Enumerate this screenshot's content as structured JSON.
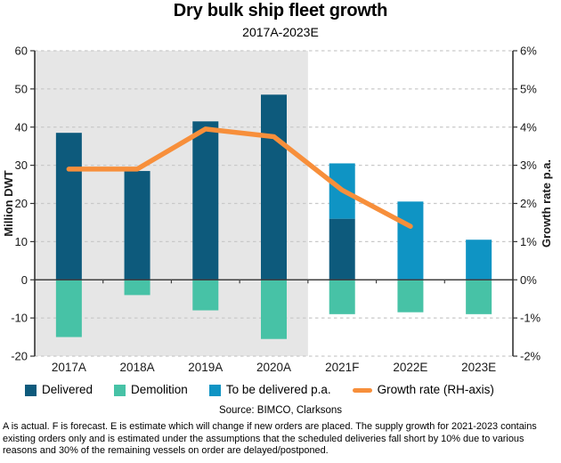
{
  "header": {
    "title": "Dry bulk ship fleet growth",
    "subtitle": "2017A-2023E"
  },
  "source": "Source: BIMCO, Clarksons",
  "footnote": "A is actual. F is forecast. E is estimate which will change if new orders are placed. The supply growth for 2021-2023 contains existing orders only and is estimated under the assumptions that the scheduled deliveries fall short by 10% due to various reasons and 30% of the remaining vessels on order are delayed/postponed.",
  "chart_data": {
    "type": "bar",
    "title": "Dry bulk ship fleet growth",
    "subtitle": "2017A-2023E",
    "categories": [
      "2017A",
      "2018A",
      "2019A",
      "2020A",
      "2021F",
      "2022E",
      "2023E"
    ],
    "series": [
      {
        "name": "Delivered",
        "type": "bar",
        "axis": "left",
        "color": "#0d5a7c",
        "values": [
          38.5,
          28.5,
          41.5,
          48.5,
          16,
          0,
          0
        ]
      },
      {
        "name": "Demolition",
        "type": "bar",
        "axis": "left",
        "color": "#47c2a6",
        "values": [
          -15,
          -4,
          -8,
          -15.5,
          -9,
          -8.5,
          -9
        ]
      },
      {
        "name": "To be delivered p.a.",
        "type": "bar",
        "axis": "left",
        "color": "#0f94c4",
        "values": [
          0,
          0,
          0,
          0,
          14.5,
          20.5,
          10.5
        ]
      },
      {
        "name": "Growth rate (RH-axis)",
        "type": "line",
        "axis": "right",
        "color": "#f78f3b",
        "values": [
          2.9,
          2.9,
          3.95,
          3.75,
          2.35,
          1.4,
          null
        ]
      }
    ],
    "ylabel_left": "Million DWT",
    "ylabel_right": "Growth rate p.a.",
    "y_left": {
      "min": -20,
      "max": 60,
      "tick_values": [
        60,
        50,
        40,
        30,
        20,
        10,
        0,
        -10,
        -20
      ],
      "tick_labels": [
        "60",
        "50",
        "40",
        "30",
        "20",
        "10",
        "0",
        "-10",
        "-20"
      ]
    },
    "y_right": {
      "min": -2,
      "max": 6,
      "tick_values": [
        6,
        5,
        4,
        3,
        2,
        1,
        0,
        -1,
        -2
      ],
      "tick_labels": [
        "6%",
        "5%",
        "4%",
        "3%",
        "2%",
        "1%",
        "0%",
        "-1%",
        "-2%"
      ]
    },
    "actual_shaded_categories": 4,
    "grid": "dashed-horizontal",
    "legend_position": "bottom",
    "colors": {
      "actual_region_bg": "#e6e6e6",
      "gridline": "#c9c9c9",
      "zero_line": "#404040",
      "spine": "#333333",
      "text": "#1a1a1a"
    }
  }
}
